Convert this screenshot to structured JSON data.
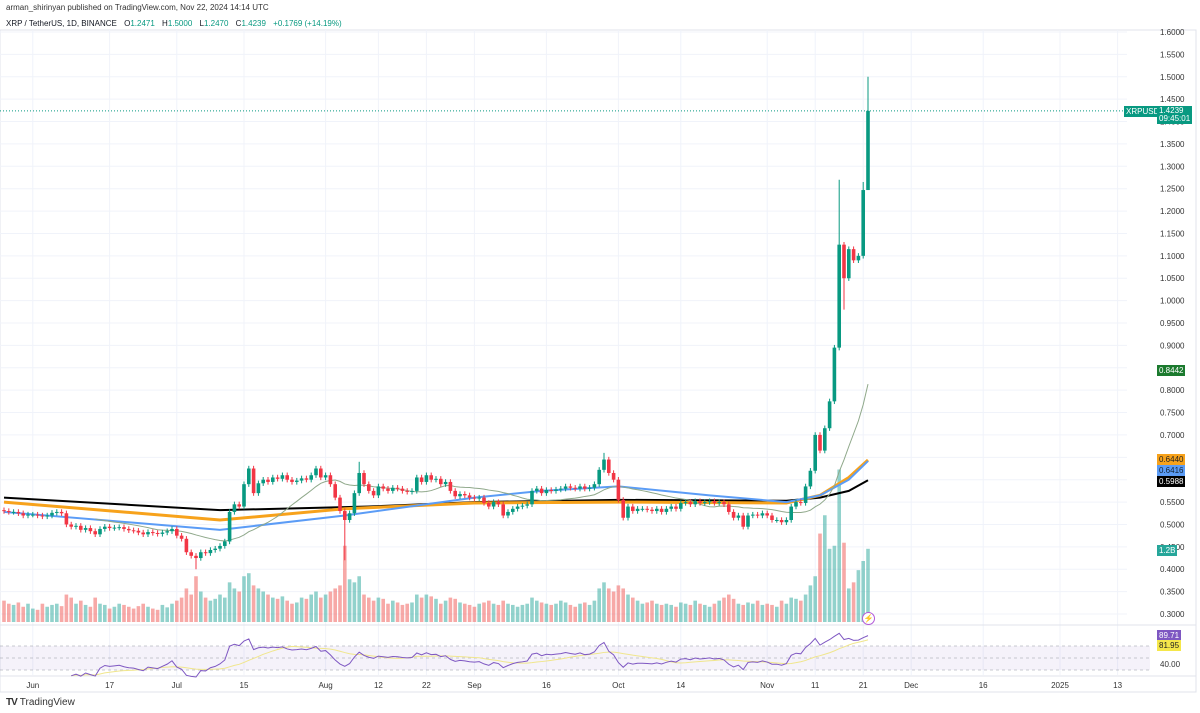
{
  "header": {
    "publisher_line": "arman_shirinyan published on TradingView.com, Nov 22, 2024 14:14 UTC",
    "symbol": "XRP / TetherUS, 1D, BINANCE",
    "open_label": "O",
    "open": "1.2471",
    "high_label": "H",
    "high": "1.5000",
    "low_label": "L",
    "low": "1.2470",
    "close_label": "C",
    "close": "1.4239",
    "change": "+0.1769 (+14.19%)"
  },
  "colors": {
    "up": "#089981",
    "down": "#f23645",
    "ma_black": "#000000",
    "ma_orange": "#f7a21b",
    "ma_blue": "#5b9cf6",
    "ma_thin": "#8fa88a",
    "rsi": "#7e57c2",
    "rsi_ma": "#f0e68c"
  },
  "badges": {
    "symbol": "XRPUSDT",
    "price": "1.4239",
    "countdown": "09:45:01",
    "ma_thin": "0.8442",
    "ma_orange": "0.6440",
    "ma_blue": "0.6416",
    "ma_black": "0.5988",
    "volume": "1.2B",
    "rsi": "89.71",
    "rsi_ma": "81.95",
    "rsi_level": "40.00"
  },
  "icons": {
    "lightning": "lightning-icon",
    "logo": "tradingview-logo"
  },
  "footer": {
    "brand": "TradingView"
  },
  "chart_data": {
    "type": "candlestick",
    "symbol": "XRPUSDT",
    "start_date": "2024-05-26",
    "interval": "1D",
    "price_axis": {
      "min": 0.3,
      "max": 1.6,
      "step": 0.05,
      "ticks": [
        "1.6000",
        "1.5500",
        "1.5000",
        "1.4500",
        "1.4000",
        "1.3500",
        "1.3000",
        "1.2500",
        "1.2000",
        "1.1500",
        "1.1000",
        "1.0500",
        "1.0000",
        "0.9500",
        "0.9000",
        "0.8500",
        "0.8000",
        "0.7500",
        "0.7000",
        "0.6500",
        "0.6000",
        "0.5500",
        "0.5000",
        "0.4500",
        "0.4000",
        "0.3500",
        "0.3000"
      ]
    },
    "time_axis": [
      {
        "date": "2024-06-01",
        "label": "Jun"
      },
      {
        "date": "2024-06-17",
        "label": "17"
      },
      {
        "date": "2024-07-01",
        "label": "Jul"
      },
      {
        "date": "2024-07-15",
        "label": "15"
      },
      {
        "date": "2024-08-01",
        "label": "Aug"
      },
      {
        "date": "2024-08-12",
        "label": "12"
      },
      {
        "date": "2024-08-22",
        "label": "22"
      },
      {
        "date": "2024-09-01",
        "label": "Sep"
      },
      {
        "date": "2024-09-16",
        "label": "16"
      },
      {
        "date": "2024-10-01",
        "label": "Oct"
      },
      {
        "date": "2024-10-14",
        "label": "14"
      },
      {
        "date": "2024-11-01",
        "label": "Nov"
      },
      {
        "date": "2024-11-11",
        "label": "11"
      },
      {
        "date": "2024-11-21",
        "label": "21"
      },
      {
        "date": "2024-12-01",
        "label": "Dec"
      },
      {
        "date": "2024-12-16",
        "label": "16"
      },
      {
        "date": "2025-01-01",
        "label": "2025"
      },
      {
        "date": "2025-01-13",
        "label": "13"
      }
    ],
    "closes": [
      0.53,
      0.528,
      0.528,
      0.525,
      0.52,
      0.522,
      0.522,
      0.52,
      0.518,
      0.52,
      0.526,
      0.528,
      0.525,
      0.5,
      0.495,
      0.497,
      0.488,
      0.492,
      0.485,
      0.478,
      0.49,
      0.495,
      0.492,
      0.493,
      0.494,
      0.49,
      0.487,
      0.486,
      0.482,
      0.478,
      0.483,
      0.481,
      0.479,
      0.482,
      0.485,
      0.49,
      0.475,
      0.468,
      0.438,
      0.43,
      0.425,
      0.438,
      0.436,
      0.443,
      0.446,
      0.452,
      0.462,
      0.528,
      0.545,
      0.54,
      0.59,
      0.625,
      0.57,
      0.592,
      0.6,
      0.595,
      0.605,
      0.602,
      0.61,
      0.6,
      0.595,
      0.598,
      0.603,
      0.6,
      0.61,
      0.625,
      0.605,
      0.61,
      0.59,
      0.56,
      0.53,
      0.51,
      0.525,
      0.57,
      0.615,
      0.59,
      0.575,
      0.565,
      0.585,
      0.58,
      0.575,
      0.582,
      0.58,
      0.575,
      0.573,
      0.575,
      0.605,
      0.595,
      0.61,
      0.6,
      0.602,
      0.59,
      0.595,
      0.575,
      0.563,
      0.568,
      0.565,
      0.56,
      0.558,
      0.56,
      0.548,
      0.54,
      0.55,
      0.545,
      0.52,
      0.528,
      0.535,
      0.54,
      0.542,
      0.545,
      0.575,
      0.58,
      0.57,
      0.577,
      0.575,
      0.578,
      0.58,
      0.585,
      0.582,
      0.58,
      0.585,
      0.58,
      0.582,
      0.59,
      0.622,
      0.645,
      0.615,
      0.6,
      0.555,
      0.515,
      0.54,
      0.53,
      0.535,
      0.535,
      0.533,
      0.53,
      0.535,
      0.528,
      0.535,
      0.54,
      0.535,
      0.548,
      0.55,
      0.545,
      0.552,
      0.548,
      0.55,
      0.552,
      0.548,
      0.55,
      0.545,
      0.528,
      0.515,
      0.52,
      0.495,
      0.52,
      0.522,
      0.52,
      0.525,
      0.52,
      0.51,
      0.51,
      0.505,
      0.51,
      0.54,
      0.55,
      0.548,
      0.585,
      0.62,
      0.7,
      0.665,
      0.715,
      0.775,
      0.895,
      1.125,
      1.05,
      1.115,
      1.09,
      1.1,
      1.247,
      1.4239
    ],
    "wick_extremes": [
      {
        "date": "2024-07-05",
        "low": 0.4
      },
      {
        "date": "2024-08-05",
        "low": 0.42
      },
      {
        "date": "2024-08-08",
        "high": 0.64
      },
      {
        "date": "2024-09-28",
        "high": 0.66
      },
      {
        "date": "2024-11-16",
        "high": 1.27
      },
      {
        "date": "2024-11-17",
        "low": 0.98
      },
      {
        "date": "2024-11-21",
        "high": 1.265
      },
      {
        "date": "2024-11-22",
        "high": 1.5,
        "low": 1.247
      }
    ],
    "volume_billions": [
      0.35,
      0.3,
      0.28,
      0.32,
      0.25,
      0.3,
      0.22,
      0.2,
      0.3,
      0.25,
      0.28,
      0.3,
      0.26,
      0.45,
      0.4,
      0.3,
      0.35,
      0.28,
      0.25,
      0.4,
      0.3,
      0.28,
      0.22,
      0.25,
      0.3,
      0.28,
      0.25,
      0.22,
      0.26,
      0.3,
      0.25,
      0.22,
      0.2,
      0.28,
      0.24,
      0.3,
      0.35,
      0.4,
      0.55,
      0.45,
      0.75,
      0.5,
      0.4,
      0.35,
      0.38,
      0.45,
      0.4,
      0.65,
      0.55,
      0.5,
      0.75,
      0.8,
      0.6,
      0.55,
      0.5,
      0.45,
      0.4,
      0.38,
      0.42,
      0.35,
      0.3,
      0.32,
      0.4,
      0.38,
      0.45,
      0.5,
      0.4,
      0.45,
      0.5,
      0.55,
      0.6,
      1.25,
      0.7,
      0.65,
      0.75,
      0.45,
      0.4,
      0.35,
      0.4,
      0.38,
      0.3,
      0.35,
      0.32,
      0.28,
      0.3,
      0.32,
      0.45,
      0.4,
      0.45,
      0.42,
      0.38,
      0.3,
      0.35,
      0.4,
      0.38,
      0.32,
      0.3,
      0.28,
      0.25,
      0.3,
      0.32,
      0.35,
      0.3,
      0.28,
      0.35,
      0.3,
      0.28,
      0.25,
      0.28,
      0.3,
      0.4,
      0.35,
      0.32,
      0.3,
      0.28,
      0.3,
      0.35,
      0.32,
      0.28,
      0.25,
      0.3,
      0.32,
      0.28,
      0.35,
      0.55,
      0.65,
      0.55,
      0.5,
      0.6,
      0.55,
      0.45,
      0.4,
      0.35,
      0.3,
      0.32,
      0.35,
      0.3,
      0.28,
      0.3,
      0.28,
      0.25,
      0.32,
      0.3,
      0.28,
      0.35,
      0.3,
      0.28,
      0.25,
      0.3,
      0.35,
      0.4,
      0.45,
      0.38,
      0.3,
      0.28,
      0.32,
      0.3,
      0.35,
      0.28,
      0.3,
      0.28,
      0.25,
      0.35,
      0.3,
      0.4,
      0.38,
      0.35,
      0.45,
      0.6,
      0.75,
      1.45,
      1.75,
      1.2,
      1.25,
      2.5,
      1.3,
      0.55,
      0.65,
      0.85,
      1.0,
      1.2
    ],
    "moving_averages": {
      "black": [
        [
          "2024-05-26",
          0.56
        ],
        [
          "2024-07-10",
          0.532
        ],
        [
          "2024-08-10",
          0.54
        ],
        [
          "2024-09-01",
          0.55
        ],
        [
          "2024-10-01",
          0.555
        ],
        [
          "2024-11-05",
          0.553
        ],
        [
          "2024-11-12",
          0.56
        ],
        [
          "2024-11-18",
          0.575
        ],
        [
          "2024-11-22",
          0.5988
        ]
      ],
      "orange": [
        [
          "2024-05-26",
          0.55
        ],
        [
          "2024-07-10",
          0.51
        ],
        [
          "2024-08-05",
          0.535
        ],
        [
          "2024-09-01",
          0.548
        ],
        [
          "2024-10-01",
          0.55
        ],
        [
          "2024-11-05",
          0.548
        ],
        [
          "2024-11-12",
          0.565
        ],
        [
          "2024-11-18",
          0.605
        ],
        [
          "2024-11-22",
          0.644
        ]
      ],
      "blue": [
        [
          "2024-05-26",
          0.528
        ],
        [
          "2024-07-10",
          0.488
        ],
        [
          "2024-08-05",
          0.52
        ],
        [
          "2024-09-01",
          0.56
        ],
        [
          "2024-09-15",
          0.575
        ],
        [
          "2024-10-01",
          0.585
        ],
        [
          "2024-10-20",
          0.565
        ],
        [
          "2024-11-05",
          0.55
        ],
        [
          "2024-11-12",
          0.565
        ],
        [
          "2024-11-18",
          0.6
        ],
        [
          "2024-11-22",
          0.6416
        ]
      ],
      "thin_period": 20
    },
    "rsi": {
      "period": 14,
      "levels": [
        70,
        50,
        30
      ],
      "last": 89.71,
      "ma_last": 81.95
    }
  }
}
